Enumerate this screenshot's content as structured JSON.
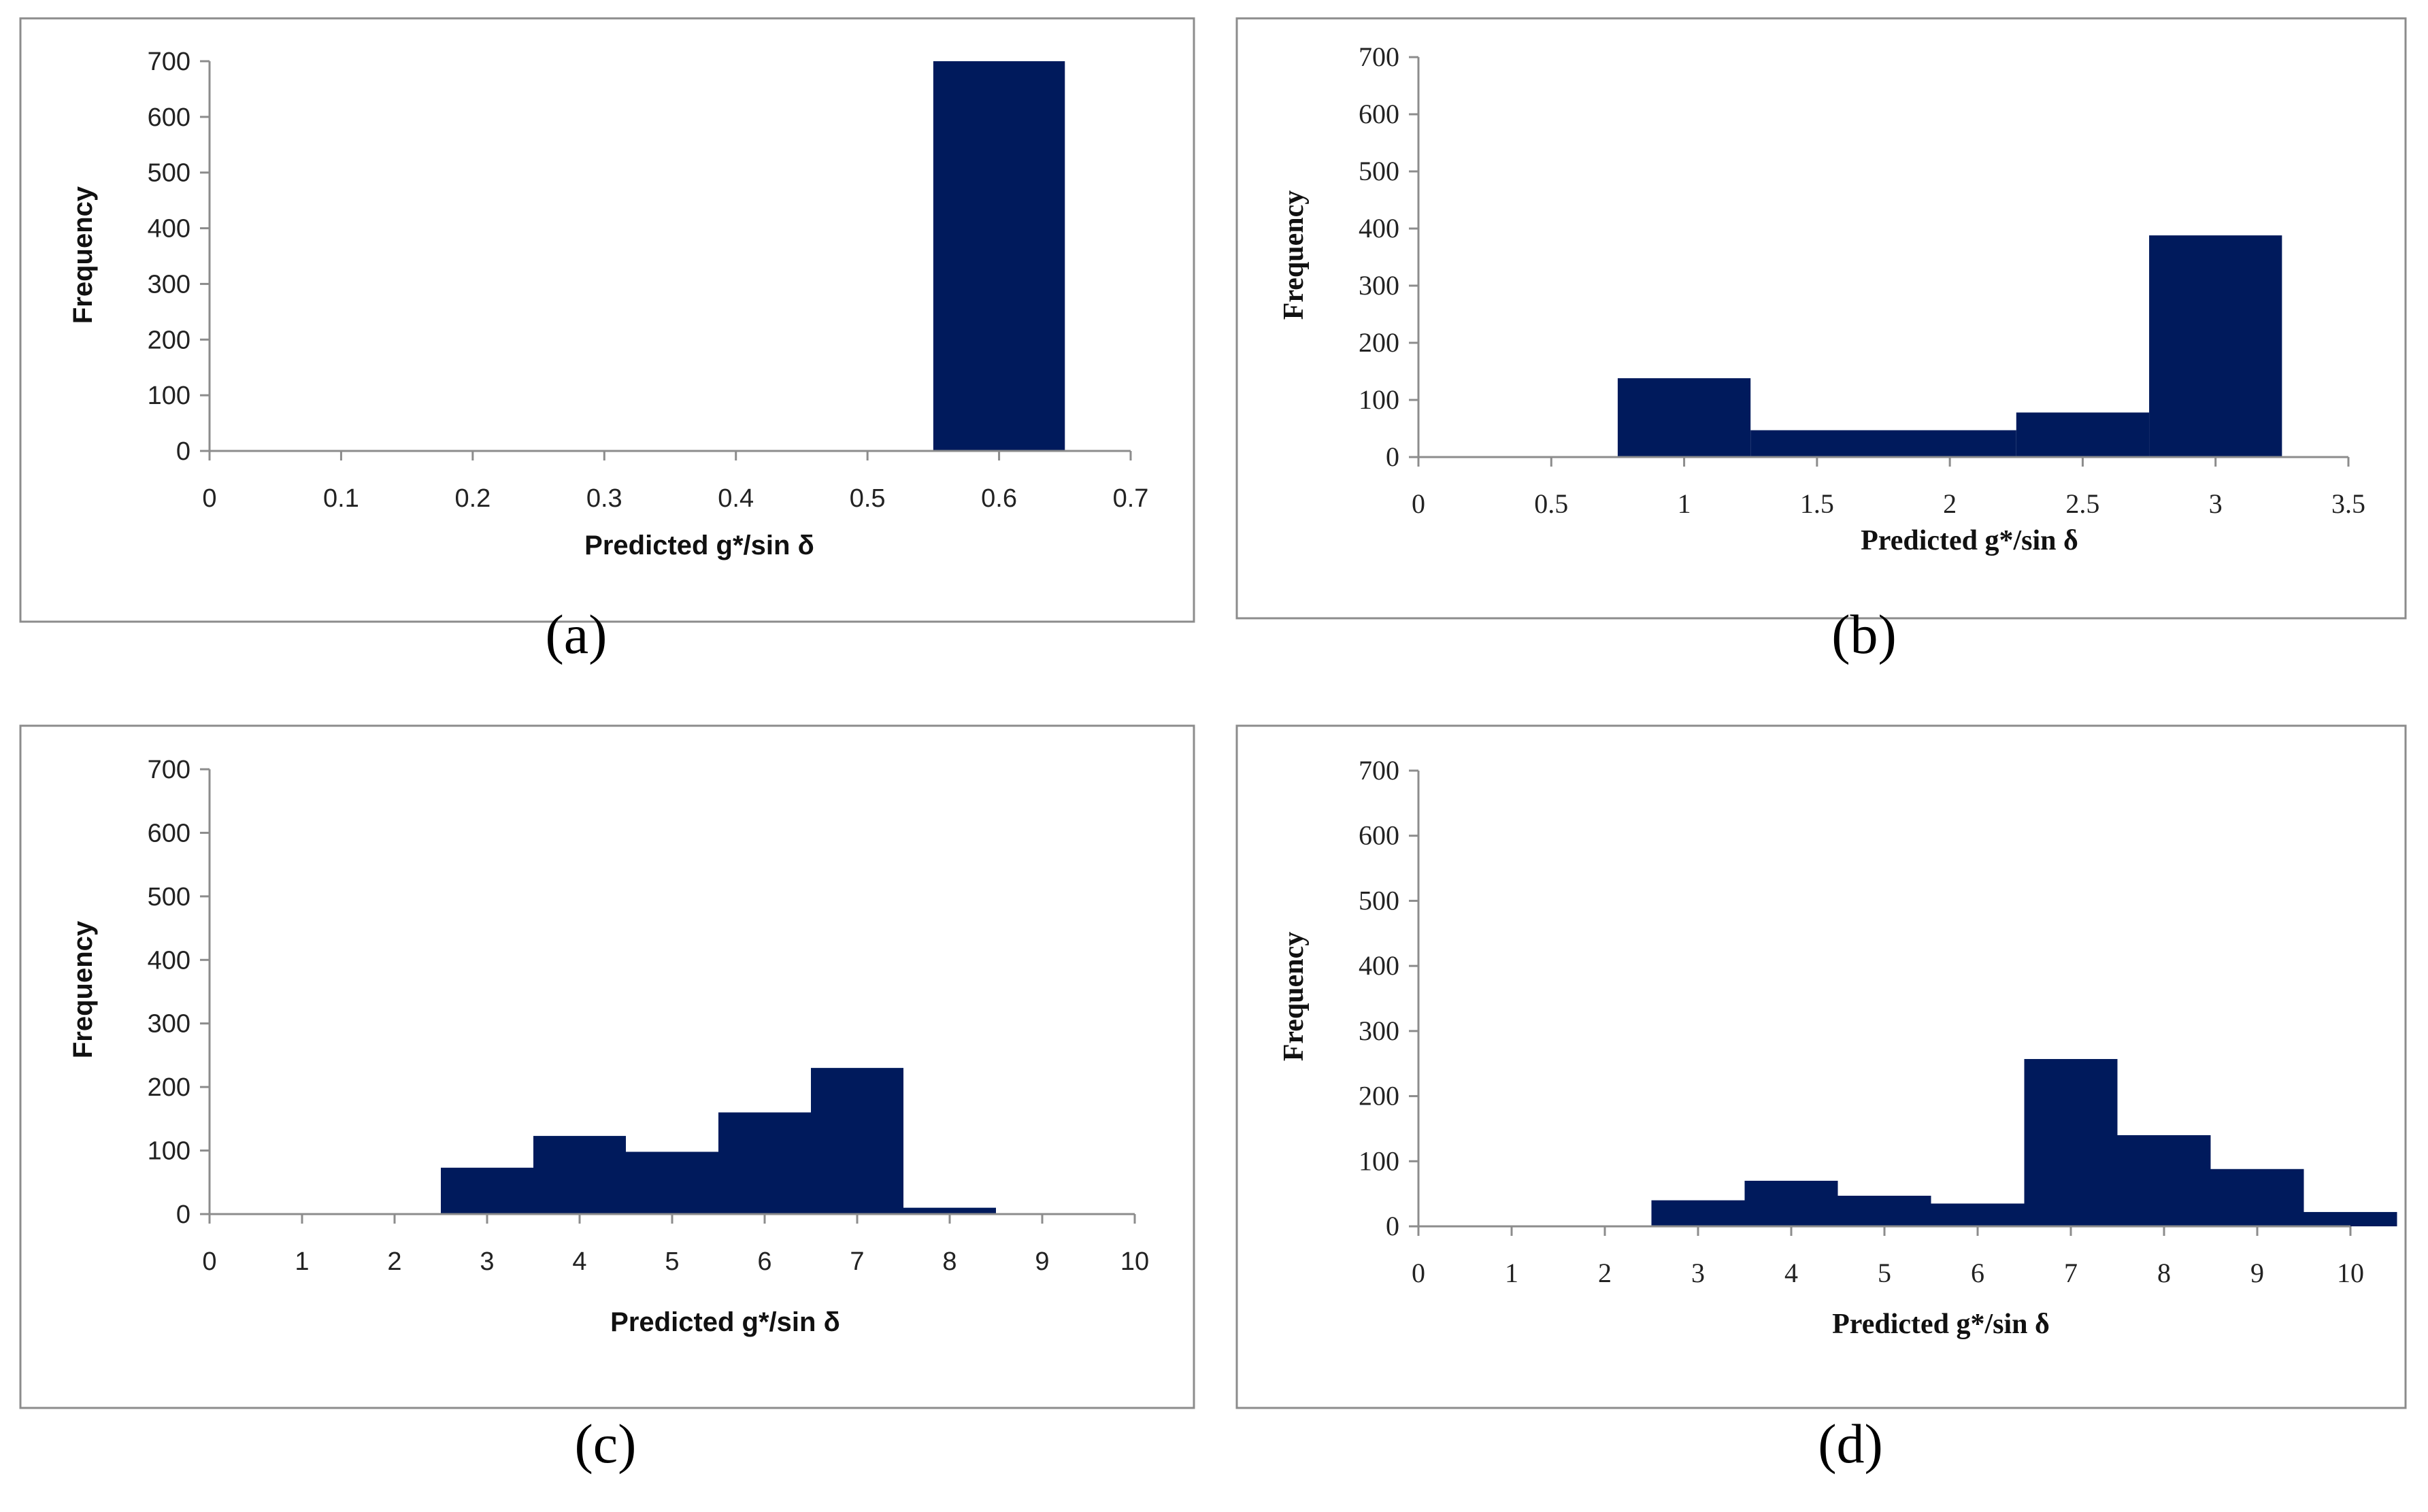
{
  "chart_data": [
    {
      "id": "a",
      "type": "bar",
      "caption": "(a)",
      "xlabel": "Predicted g*/sin δ",
      "ylabel": "Frequency",
      "xlim": [
        0,
        0.7
      ],
      "ylim": [
        0,
        700
      ],
      "xticks": [
        "0",
        "0.1",
        "0.2",
        "0.3",
        "0.4",
        "0.5",
        "0.6",
        "0.7"
      ],
      "yticks": [
        "0",
        "100",
        "200",
        "300",
        "400",
        "500",
        "600",
        "700"
      ],
      "bin_width": 0.1,
      "bins": [
        {
          "center": 0.6,
          "value": 700
        }
      ]
    },
    {
      "id": "b",
      "type": "bar",
      "caption": "(b)",
      "xlabel": "Predicted g*/sin δ",
      "ylabel": "Frequency",
      "xlim": [
        0,
        3.5
      ],
      "ylim": [
        0,
        700
      ],
      "xticks": [
        "0",
        "0.5",
        "1",
        "1.5",
        "2",
        "2.5",
        "3",
        "3.5"
      ],
      "yticks": [
        "0",
        "100",
        "200",
        "300",
        "400",
        "500",
        "600",
        "700"
      ],
      "bin_width": 0.5,
      "bins": [
        {
          "center": 1.0,
          "value": 138
        },
        {
          "center": 1.5,
          "value": 47
        },
        {
          "center": 2.0,
          "value": 47
        },
        {
          "center": 2.5,
          "value": 78
        },
        {
          "center": 3.0,
          "value": 388
        }
      ]
    },
    {
      "id": "c",
      "type": "bar",
      "caption": "(c)",
      "xlabel": "Predicted g*/sin δ",
      "ylabel": "Frequency",
      "xlim": [
        0,
        10
      ],
      "ylim": [
        0,
        700
      ],
      "xticks": [
        "0",
        "1",
        "2",
        "3",
        "4",
        "5",
        "6",
        "7",
        "8",
        "9",
        "10"
      ],
      "yticks": [
        "0",
        "100",
        "200",
        "300",
        "400",
        "500",
        "600",
        "700"
      ],
      "bin_width": 1,
      "bins": [
        {
          "center": 3,
          "value": 73
        },
        {
          "center": 4,
          "value": 123
        },
        {
          "center": 5,
          "value": 98
        },
        {
          "center": 6,
          "value": 160
        },
        {
          "center": 7,
          "value": 230
        },
        {
          "center": 8,
          "value": 10
        }
      ]
    },
    {
      "id": "d",
      "type": "bar",
      "caption": "(d)",
      "xlabel": "Predicted g*/sin δ",
      "ylabel": "Frequency",
      "xlim": [
        0,
        10
      ],
      "ylim": [
        0,
        700
      ],
      "xticks": [
        "0",
        "1",
        "2",
        "3",
        "4",
        "5",
        "6",
        "7",
        "8",
        "9",
        "10"
      ],
      "yticks": [
        "0",
        "100",
        "200",
        "300",
        "400",
        "500",
        "600",
        "700"
      ],
      "bin_width": 1,
      "bins": [
        {
          "center": 3,
          "value": 40
        },
        {
          "center": 4,
          "value": 70
        },
        {
          "center": 5,
          "value": 47
        },
        {
          "center": 6,
          "value": 35
        },
        {
          "center": 7,
          "value": 257
        },
        {
          "center": 8,
          "value": 140
        },
        {
          "center": 9,
          "value": 88
        },
        {
          "center": 10,
          "value": 22
        }
      ]
    }
  ]
}
